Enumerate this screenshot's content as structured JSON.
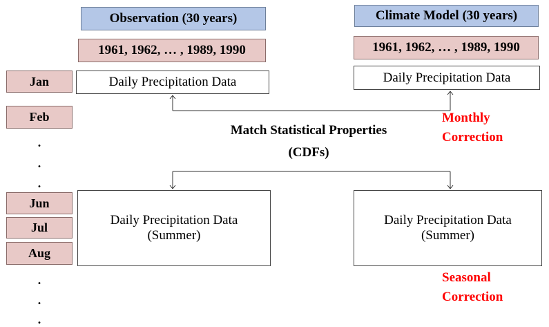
{
  "observation": {
    "title": "Observation (30 years)",
    "years": "1961, 1962, … , 1989, 1990",
    "data_box": "Daily Precipitation Data"
  },
  "model": {
    "title": "Climate Model (30 years)",
    "years": "1961, 1962, … , 1989, 1990",
    "data_box": "Daily Precipitation Data"
  },
  "months": [
    "Jan",
    "Feb",
    ".",
    ".",
    ".",
    "Jun",
    "Jul",
    "Aug",
    ".",
    ".",
    "."
  ],
  "center_label": [
    "Match Statistical Properties",
    "(CDFs)"
  ],
  "monthly_correction": [
    "Monthly",
    "Correction"
  ],
  "seasonal": {
    "observation_box": [
      "Daily Precipitation Data",
      "(Summer)"
    ],
    "model_box": [
      "Daily Precipitation Data",
      "(Summer)"
    ]
  },
  "seasonal_correction": [
    "Seasonal",
    "Correction"
  ]
}
